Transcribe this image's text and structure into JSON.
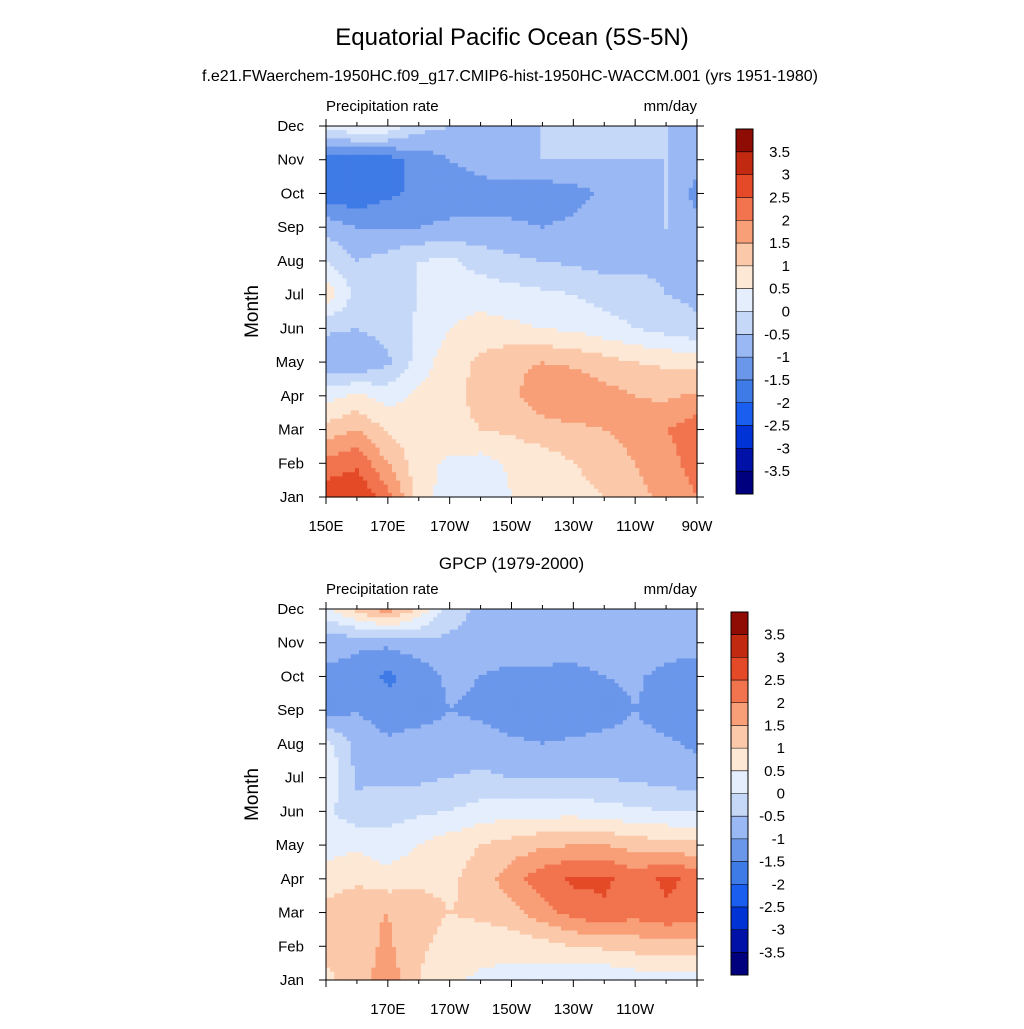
{
  "figure": {
    "title": "Equatorial Pacific Ocean (5S-5N)",
    "subtitle": "f.e21.FWaerchem-1950HC.f09_g17.CMIP6-hist-1950HC-WACCM.001 (yrs 1951-1980)"
  },
  "colors": {
    "palette": [
      "#00007f",
      "#0011a8",
      "#0033d6",
      "#1a5ef0",
      "#3f7be6",
      "#6b97eb",
      "#9ab8f4",
      "#c6d8f8",
      "#e4eefc",
      "#fde8d6",
      "#fbc9aa",
      "#f89f78",
      "#f2744f",
      "#e44a27",
      "#c12a10",
      "#8e0c04"
    ],
    "levels": [
      -3.5,
      -3,
      -2.5,
      -2,
      -1.5,
      -1,
      -0.5,
      0,
      0.5,
      1,
      1.5,
      2,
      2.5,
      3,
      3.5
    ]
  },
  "chart_data": [
    {
      "type": "heatmap",
      "title": "",
      "left_label": "Precipitation rate",
      "right_label": "mm/day",
      "ylabel": "Month",
      "xlabel": "",
      "x_ticks": [
        "150E",
        "170E",
        "170W",
        "150W",
        "130W",
        "110W",
        "90W"
      ],
      "x": [
        150,
        160,
        170,
        180,
        190,
        200,
        210,
        220,
        230,
        240,
        250,
        260,
        270
      ],
      "xlim": [
        150,
        270
      ],
      "y_ticks": [
        "Jan",
        "Feb",
        "Mar",
        "Apr",
        "May",
        "Jun",
        "Jul",
        "Aug",
        "Sep",
        "Oct",
        "Nov",
        "Dec"
      ],
      "colorbar_labels": [
        "3.5",
        "3",
        "2.5",
        "2",
        "1.5",
        "1",
        "0.5",
        "0",
        "-0.5",
        "-1",
        "-1.5",
        "-2",
        "-2.5",
        "-3",
        "-3.5"
      ],
      "z": [
        [
          2.8,
          3.0,
          2.2,
          0.8,
          0.2,
          0.0,
          0.5,
          0.6,
          0.8,
          1.0,
          1.3,
          1.7,
          2.0
        ],
        [
          2.2,
          2.4,
          1.5,
          0.7,
          0.4,
          0.3,
          0.6,
          0.7,
          1.0,
          1.2,
          1.5,
          1.8,
          2.2
        ],
        [
          1.2,
          1.5,
          0.9,
          0.8,
          0.9,
          1.0,
          1.1,
          1.3,
          1.4,
          1.5,
          1.7,
          2.0,
          2.3
        ],
        [
          0.3,
          0.6,
          0.3,
          0.6,
          0.9,
          1.1,
          1.4,
          1.8,
          2.0,
          1.7,
          1.5,
          1.4,
          1.6
        ],
        [
          -0.9,
          -1.0,
          -0.6,
          0.2,
          0.8,
          1.1,
          1.4,
          1.5,
          1.4,
          1.2,
          1.0,
          0.9,
          0.8
        ],
        [
          -0.4,
          -0.5,
          -0.3,
          0.1,
          0.5,
          0.7,
          0.6,
          0.5,
          0.4,
          0.2,
          0.0,
          -0.2,
          -0.4
        ],
        [
          0.9,
          -0.2,
          -0.4,
          0.0,
          0.2,
          0.3,
          0.2,
          0.1,
          0.0,
          -0.2,
          -0.3,
          -0.5,
          -0.6
        ],
        [
          0.0,
          -0.5,
          -0.3,
          0.0,
          0.1,
          -0.2,
          -0.4,
          -0.5,
          -0.6,
          -0.7,
          -0.6,
          -0.6,
          -0.7
        ],
        [
          -0.7,
          -1.0,
          -1.0,
          -1.0,
          -0.9,
          -0.9,
          -0.9,
          -1.0,
          -0.9,
          -0.6,
          -0.5,
          -0.5,
          -0.8
        ],
        [
          -1.8,
          -1.9,
          -1.6,
          -1.4,
          -1.3,
          -1.2,
          -1.3,
          -1.3,
          -1.2,
          -0.9,
          -0.6,
          -0.5,
          -1.2
        ],
        [
          -1.9,
          -1.8,
          -1.7,
          -1.3,
          -1.0,
          -0.8,
          -0.6,
          -0.5,
          -0.5,
          -0.5,
          -0.5,
          -0.5,
          -0.8
        ],
        [
          0.1,
          0.6,
          0.4,
          -0.3,
          -0.5,
          -0.6,
          -0.5,
          -0.5,
          -0.5,
          -0.5,
          -0.5,
          -0.5,
          -0.6
        ]
      ]
    },
    {
      "type": "heatmap",
      "title": "GPCP (1979-2000)",
      "left_label": "Precipitation rate",
      "right_label": "mm/day",
      "ylabel": "Month",
      "xlabel": "",
      "x_ticks": [
        "",
        "170E",
        "170W",
        "150W",
        "130W",
        "110W",
        ""
      ],
      "x": [
        150,
        160,
        170,
        180,
        190,
        200,
        210,
        220,
        230,
        240,
        250,
        260,
        270
      ],
      "xlim": [
        150,
        270
      ],
      "y_ticks": [
        "Jan",
        "Feb",
        "Mar",
        "Apr",
        "May",
        "Jun",
        "Jul",
        "Aug",
        "Sep",
        "Oct",
        "Nov",
        "Dec"
      ],
      "colorbar_labels": [
        "3.5",
        "3",
        "2.5",
        "2",
        "1.5",
        "1",
        "0.5",
        "0",
        "-0.5",
        "-1",
        "-1.5",
        "-2",
        "-2.5",
        "-3",
        "-3.5"
      ],
      "z": [
        [
          0.9,
          1.2,
          1.8,
          1.0,
          0.6,
          0.4,
          0.3,
          0.2,
          0.1,
          0.0,
          0.2,
          0.3,
          0.3
        ],
        [
          1.1,
          1.3,
          1.6,
          1.1,
          0.8,
          0.7,
          0.7,
          0.8,
          1.0,
          1.1,
          1.2,
          1.3,
          1.2
        ],
        [
          1.2,
          1.4,
          1.5,
          1.2,
          1.0,
          1.1,
          1.3,
          1.8,
          2.2,
          2.4,
          2.2,
          2.4,
          2.3
        ],
        [
          0.7,
          0.9,
          0.7,
          0.9,
          0.9,
          1.2,
          1.8,
          2.3,
          2.6,
          2.6,
          2.3,
          2.6,
          2.4
        ],
        [
          0.3,
          0.4,
          0.2,
          0.5,
          0.8,
          1.0,
          1.2,
          1.4,
          1.5,
          1.5,
          1.3,
          1.2,
          1.1
        ],
        [
          0.1,
          -0.3,
          -0.2,
          -0.1,
          0.0,
          0.2,
          0.3,
          0.3,
          0.3,
          0.2,
          0.1,
          0.0,
          0.0
        ],
        [
          0.5,
          -0.6,
          -0.6,
          -0.6,
          -0.5,
          -0.4,
          -0.5,
          -0.5,
          -0.5,
          -0.5,
          -0.6,
          -0.7,
          -0.8
        ],
        [
          0.2,
          -0.7,
          -0.9,
          -0.8,
          -0.8,
          -0.8,
          -0.9,
          -1.0,
          -0.9,
          -0.8,
          -0.8,
          -0.9,
          -1.1
        ],
        [
          -1.3,
          -1.0,
          -1.3,
          -1.2,
          -1.0,
          -1.1,
          -1.3,
          -1.4,
          -1.4,
          -1.3,
          -1.0,
          -1.3,
          -1.4
        ],
        [
          -1.1,
          -1.2,
          -1.6,
          -1.3,
          -0.9,
          -1.0,
          -1.2,
          -1.2,
          -1.2,
          -1.0,
          -0.9,
          -1.2,
          -1.3
        ],
        [
          -0.8,
          -0.9,
          -0.9,
          -0.7,
          -0.6,
          -0.6,
          -0.6,
          -0.6,
          -0.7,
          -0.7,
          -0.6,
          -0.7,
          -0.8
        ],
        [
          0.3,
          1.2,
          1.8,
          0.9,
          -0.3,
          -0.6,
          -0.5,
          -0.5,
          -0.5,
          -0.5,
          -0.5,
          -0.6,
          -0.6
        ]
      ]
    }
  ]
}
